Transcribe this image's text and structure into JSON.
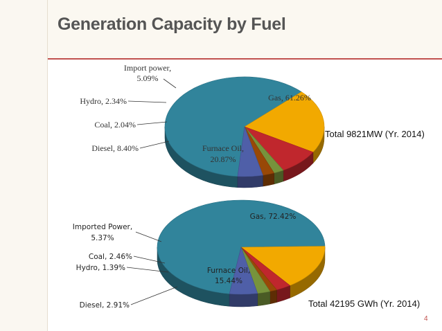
{
  "slide": {
    "title": "Generation Capacity by Fuel",
    "page_number": "4"
  },
  "colors": {
    "title_band": "#fbf8f1",
    "accent_rule": "#c0504d",
    "gas": "#31849b",
    "furnace_oil": "#f2a900",
    "diesel": "#c0272d",
    "coal": "#77933c",
    "hydro": "#984807",
    "import": "#4f5fa8"
  },
  "chart_data": [
    {
      "type": "pie",
      "style": "3d",
      "title": "",
      "total_label": "Total 9821MW (Yr. 2014)",
      "slices": [
        {
          "key": "gas",
          "label": "Gas, 61.26%",
          "value": 61.26,
          "color": "#31849b"
        },
        {
          "key": "furnace_oil",
          "label": "Furnace Oil, 20.87%",
          "label_lines": [
            "Furnace Oil,",
            "20.87%"
          ],
          "value": 20.87,
          "color": "#f2a900"
        },
        {
          "key": "diesel",
          "label": "Diesel, 8.40%",
          "value": 8.4,
          "color": "#c0272d"
        },
        {
          "key": "coal",
          "label": "Coal, 2.04%",
          "value": 2.04,
          "color": "#77933c"
        },
        {
          "key": "hydro",
          "label": "Hydro, 2.34%",
          "value": 2.34,
          "color": "#984807"
        },
        {
          "key": "import",
          "label": "Import power, 5.09%",
          "label_lines": [
            "Import power,",
            "5.09%"
          ],
          "value": 5.09,
          "color": "#4f5fa8"
        }
      ]
    },
    {
      "type": "pie",
      "style": "3d",
      "title": "",
      "total_label": "Total 42195 GWh (Yr. 2014)",
      "slices": [
        {
          "key": "gas",
          "label": "Gas, 72.42%",
          "value": 72.42,
          "color": "#31849b"
        },
        {
          "key": "furnace_oil",
          "label": "Furnace Oil, 15.44%",
          "label_lines": [
            "Furnace Oil,",
            "15.44%"
          ],
          "value": 15.44,
          "color": "#f2a900"
        },
        {
          "key": "diesel",
          "label": "Diesel, 2.91%",
          "value": 2.91,
          "color": "#c0272d"
        },
        {
          "key": "hydro",
          "label": "Hydro, 1.39%",
          "value": 1.39,
          "color": "#984807"
        },
        {
          "key": "coal",
          "label": "Coal, 2.46%",
          "value": 2.46,
          "color": "#77933c"
        },
        {
          "key": "import",
          "label": "Imported Power, 5.37%",
          "label_lines": [
            "Imported Power,",
            "5.37%"
          ],
          "value": 5.37,
          "color": "#4f5fa8"
        }
      ]
    }
  ]
}
